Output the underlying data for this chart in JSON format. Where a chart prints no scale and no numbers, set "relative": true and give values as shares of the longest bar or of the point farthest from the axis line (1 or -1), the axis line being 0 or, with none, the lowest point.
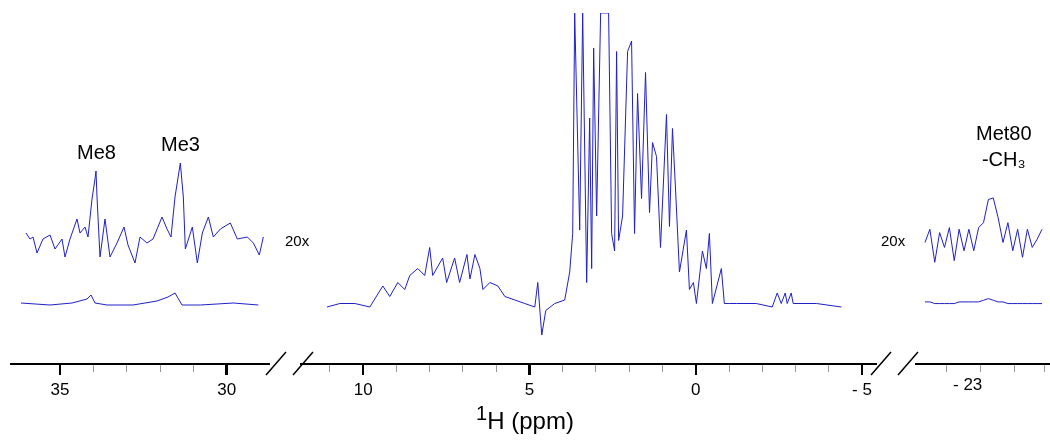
{
  "chart_data": [
    {
      "type": "line",
      "relative": true,
      "tick_labels": "x",
      "xlim": [
        36.5,
        28.7
      ],
      "xticks": [
        35,
        {
          "value": 34,
          "label": null
        },
        {
          "value": 33,
          "label": null
        },
        {
          "value": 32,
          "label": null
        },
        {
          "value": 31,
          "label": null
        },
        30
      ],
      "annotations": [
        {
          "text": "Me8",
          "x": 33.92,
          "y": 0.96
        },
        {
          "text": "Me3",
          "x": 31.39,
          "y": 1
        },
        "20x"
      ],
      "series": [
        {
          "color": "#2020c8",
          "x": [
            36.02,
            35.9,
            35.81,
            35.69,
            35.51,
            35.3,
            35.15,
            34.94,
            34.85,
            34.7,
            34.49,
            34.4,
            34.25,
            34.16,
            34.04,
            33.95,
            33.92,
            33.89,
            33.8,
            33.65,
            33.5,
            33.29,
            33.08,
            32.96,
            32.75,
            32.6,
            32.39,
            32.21,
            31.94,
            31.79,
            31.67,
            31.55,
            31.39,
            31.3,
            31.24,
            31.03,
            30.88,
            30.73,
            30.55,
            30.4,
            30.19,
            29.89,
            29.68,
            29.38,
            29.2,
            29.02,
            28.9
          ],
          "values": [
            0.65,
            0.62,
            0.63,
            0.55,
            0.62,
            0.64,
            0.57,
            0.62,
            0.53,
            0.62,
            0.72,
            0.65,
            0.68,
            0.63,
            0.82,
            0.92,
            0.96,
            0.83,
            0.53,
            0.72,
            0.53,
            0.6,
            0.68,
            0.59,
            0.5,
            0.63,
            0.6,
            0.62,
            0.73,
            0.67,
            0.63,
            0.83,
            1,
            0.83,
            0.57,
            0.68,
            0.5,
            0.65,
            0.73,
            0.63,
            0.67,
            0.7,
            0.62,
            0.63,
            0.6,
            0.54,
            0.63
          ]
        },
        {
          "color": "#2020c8",
          "x": [
            36.17,
            35.3,
            34.64,
            34.19,
            34.07,
            33.95,
            33.59,
            32.81,
            32.09,
            31.76,
            31.55,
            31.34,
            30.79,
            29.8,
            29.05
          ],
          "values": [
            0.3,
            0.29,
            0.3,
            0.32,
            0.34,
            0.3,
            0.29,
            0.29,
            0.31,
            0.33,
            0.35,
            0.29,
            0.29,
            0.3,
            0.29
          ]
        }
      ]
    },
    {
      "type": "line",
      "relative": true,
      "tick_labels": "x",
      "xlabel": "$^{1}$H (ppm)",
      "xlim": [
        11.9,
        -5.45
      ],
      "xticks": [
        {
          "value": 11,
          "label": null
        },
        10,
        {
          "value": 9,
          "label": null
        },
        {
          "value": 8,
          "label": null
        },
        {
          "value": 7,
          "label": null
        },
        {
          "value": 6,
          "label": null
        },
        5,
        {
          "value": 4,
          "label": null
        },
        {
          "value": 3,
          "label": null
        },
        {
          "value": 2,
          "label": null
        },
        {
          "value": 1,
          "label": null
        },
        0,
        {
          "value": -1,
          "label": null
        },
        {
          "value": -2,
          "label": null
        },
        {
          "value": -3,
          "label": null
        },
        {
          "value": -4,
          "label": null
        },
        {
          "value": -5,
          "label": "- 5"
        }
      ],
      "series": [
        {
          "color": "#2020c8",
          "x": [
            11.09,
            10.7,
            10.25,
            9.8,
            9.41,
            9.2,
            8.96,
            8.75,
            8.6,
            8.36,
            8.15,
            8.0,
            7.91,
            7.61,
            7.49,
            7.25,
            7.1,
            6.88,
            6.79,
            6.64,
            6.49,
            6.4,
            6.19,
            5.95,
            5.74,
            5.44,
            5.14,
            4.84,
            4.75,
            4.63,
            4.51,
            4.24,
            3.94,
            3.79,
            3.7,
            3.64,
            3.49,
            3.4,
            3.28,
            3.19,
            3.13,
            3.07,
            2.98,
            2.86,
            2.62,
            2.53,
            2.44,
            2.38,
            2.32,
            2.2,
            2.05,
            1.93,
            1.84,
            1.75,
            1.63,
            1.51,
            1.39,
            1.3,
            1.18,
            1.06,
            0.88,
            0.79,
            0.7,
            0.61,
            0.49,
            0.28,
            0.19,
            0.07,
            -0.02,
            -0.2,
            -0.32,
            -0.41,
            -0.5,
            -0.77,
            -0.86,
            -1.01,
            -1.22,
            -1.82,
            -2.3,
            -2.45,
            -2.57,
            -2.69,
            -2.75,
            -2.87,
            -2.93,
            -3.63,
            -4.38
          ],
          "values": [
            0.16,
            0.17,
            0.17,
            0.16,
            0.22,
            0.19,
            0.23,
            0.21,
            0.25,
            0.27,
            0.25,
            0.33,
            0.25,
            0.3,
            0.23,
            0.3,
            0.23,
            0.31,
            0.24,
            0.31,
            0.27,
            0.21,
            0.23,
            0.22,
            0.19,
            0.18,
            0.17,
            0.16,
            0.23,
            0.08,
            0.15,
            0.17,
            0.18,
            0.26,
            0.37,
            1,
            0.38,
            1,
            0.23,
            0.7,
            0.27,
            0.9,
            0.42,
            1,
            1,
            0.37,
            0.32,
            0.89,
            0.35,
            0.42,
            0.89,
            0.92,
            0.37,
            0.77,
            0.47,
            0.83,
            0.43,
            0.63,
            0.59,
            0.33,
            0.71,
            0.39,
            0.67,
            0.5,
            0.26,
            0.38,
            0.21,
            0.23,
            0.17,
            0.32,
            0.27,
            0.37,
            0.17,
            0.27,
            0.17,
            0.17,
            0.17,
            0.17,
            0.16,
            0.2,
            0.17,
            0.2,
            0.17,
            0.2,
            0.17,
            0.17,
            0.16
          ]
        }
      ]
    },
    {
      "type": "line",
      "relative": true,
      "tick_labels": false,
      "categories": [
        null,
        null,
        null,
        null,
        null,
        null,
        null,
        null,
        null,
        null,
        null,
        null,
        null,
        null,
        null,
        null,
        null,
        null,
        null,
        null,
        null,
        null,
        null,
        null,
        null
      ],
      "annotations": [
        "Met80\n-CH₃",
        "20x",
        "- 23"
      ],
      "series": [
        {
          "color": "#2020c8",
          "values": [
            0.73,
            0.81,
            0.61,
            0.79,
            0.7,
            0.82,
            0.62,
            0.81,
            0.68,
            0.81,
            0.68,
            0.82,
            0.85,
            0.99,
            1,
            0.88,
            0.73,
            0.85,
            0.68,
            0.81,
            0.64,
            0.81,
            0.7,
            0.75,
            0.81
          ]
        },
        {
          "color": "#2020c8",
          "values": [
            0.37,
            0.37,
            0.36,
            0.36,
            0.36,
            0.36,
            0.36,
            0.37,
            0.37,
            0.37,
            0.37,
            0.37,
            0.38,
            0.39,
            0.38,
            0.37,
            0.37,
            0.36,
            0.36,
            0.36,
            0.36,
            0.36,
            0.36,
            0.36,
            0.36
          ]
        }
      ]
    }
  ]
}
